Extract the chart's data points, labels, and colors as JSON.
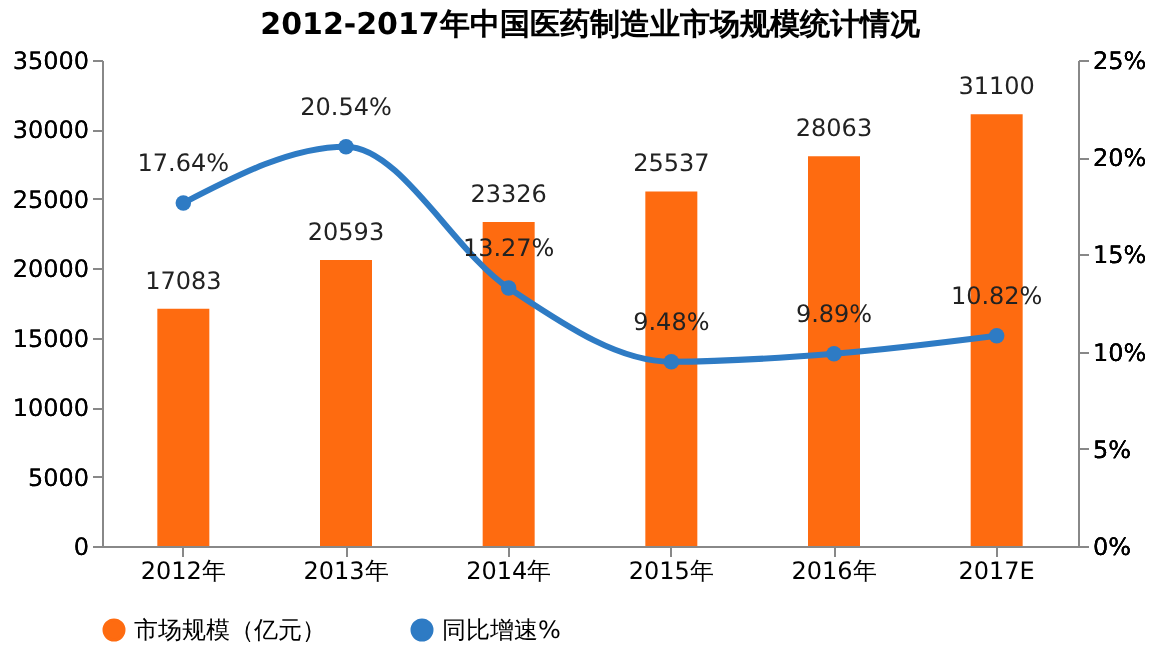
{
  "chart_data": {
    "type": "bar",
    "title": "2012-2017年中国医药制造业市场规模统计情况",
    "categories": [
      "2012年",
      "2013年",
      "2014年",
      "2015年",
      "2016年",
      "2017E"
    ],
    "series": [
      {
        "name": "市场规模（亿元）",
        "color": "#fe6b10",
        "values": [
          17083,
          20593,
          23326,
          25537,
          28063,
          31100
        ],
        "value_labels": [
          "17083",
          "20593",
          "23326",
          "25537",
          "28063",
          "31100"
        ]
      },
      {
        "name": "同比增速%",
        "type": "line",
        "axis": "y2",
        "color": "#2e7bc4",
        "values": [
          17.64,
          20.54,
          13.27,
          9.48,
          9.89,
          10.82
        ],
        "value_labels": [
          "17.64%",
          "20.54%",
          "13.27%",
          "9.48%",
          "9.89%",
          "10.82%"
        ],
        "marker": "circle",
        "line_style": "solid"
      }
    ],
    "ylim": [
      0,
      35000
    ],
    "yticks": [
      0,
      5000,
      10000,
      15000,
      20000,
      25000,
      30000,
      35000
    ],
    "y2lim": [
      0,
      25
    ],
    "y2ticks": [
      {
        "value": 0,
        "label": "0%"
      },
      {
        "value": 5,
        "label": "5%"
      },
      {
        "value": 10,
        "label": "10%"
      },
      {
        "value": 15,
        "label": "15%"
      },
      {
        "value": 20,
        "label": "20%"
      },
      {
        "value": 25,
        "label": "25%"
      }
    ],
    "grid": false,
    "legend": "bottom"
  }
}
